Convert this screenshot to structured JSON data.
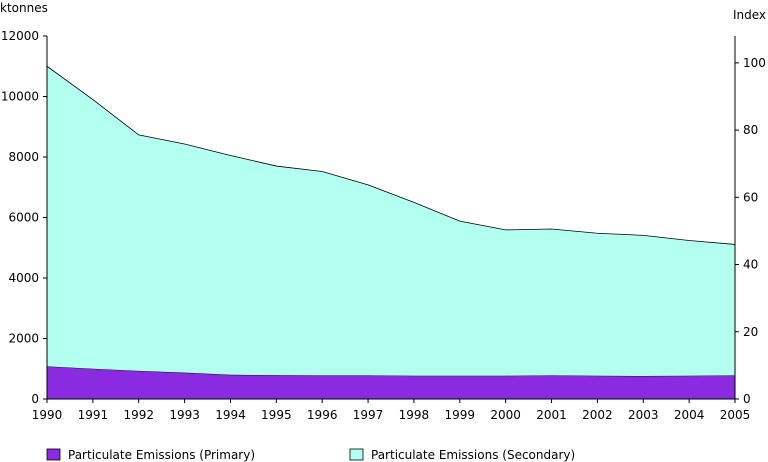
{
  "chart_data": {
    "type": "area",
    "stacked": true,
    "x": [
      "1990",
      "1991",
      "1992",
      "1993",
      "1994",
      "1995",
      "1996",
      "1997",
      "1998",
      "1999",
      "2000",
      "2001",
      "2002",
      "2003",
      "2004",
      "2005"
    ],
    "y_left_label": "ktonnes",
    "y_right_label": "Index",
    "ylim_left": [
      0,
      12000
    ],
    "ylim_right": [
      0,
      108
    ],
    "y_left_ticks": [
      0,
      2000,
      4000,
      6000,
      8000,
      10000,
      12000
    ],
    "y_right_ticks": [
      0,
      20,
      40,
      60,
      80,
      100
    ],
    "grid": false,
    "legend_position": "bottom",
    "series": [
      {
        "name": "Particulate Emissions (Primary)",
        "color": "#8a2be2",
        "values": [
          1080,
          1000,
          930,
          870,
          800,
          790,
          780,
          780,
          770,
          770,
          770,
          780,
          770,
          760,
          770,
          780
        ]
      },
      {
        "name": "Particulate Emissions (Secondary)",
        "color": "#b3fff0",
        "values": [
          9920,
          8900,
          7800,
          7560,
          7250,
          6910,
          6740,
          6300,
          5730,
          5110,
          4820,
          4840,
          4710,
          4650,
          4470,
          4330
        ]
      }
    ]
  }
}
